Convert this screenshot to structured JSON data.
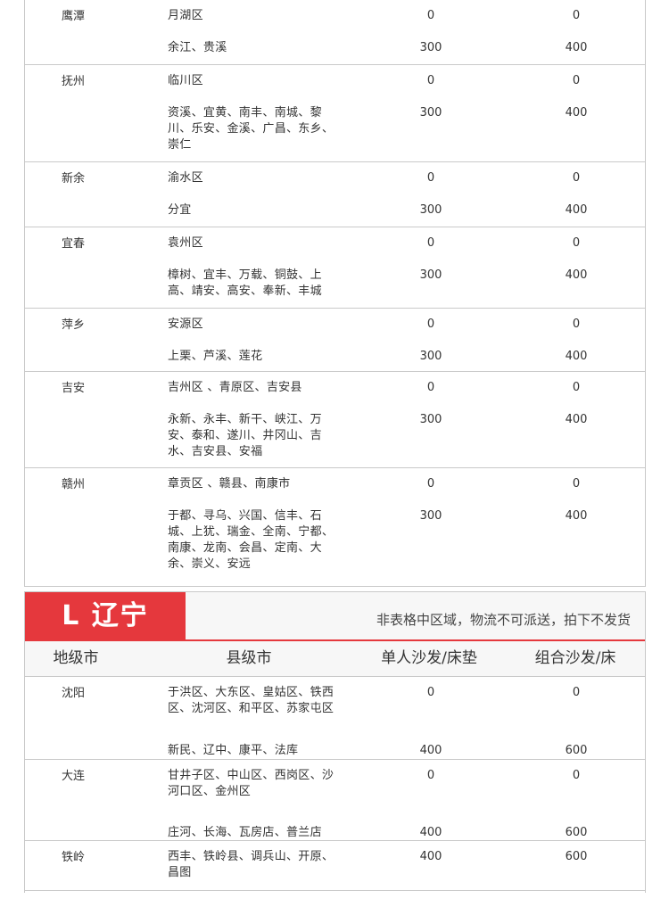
{
  "section1": {
    "groups": [
      {
        "city": "鹰潭",
        "rows": [
          {
            "county": "月湖区",
            "single": "0",
            "combo": "0"
          },
          {
            "county": "余江、贵溪",
            "single": "300",
            "combo": "400"
          }
        ]
      },
      {
        "city": "抚州",
        "rows": [
          {
            "county": "临川区",
            "single": "0",
            "combo": "0"
          },
          {
            "county": "资溪、宜黄、南丰、南城、黎川、乐安、金溪、广昌、东乡、崇仁",
            "single": "300",
            "combo": "400"
          }
        ]
      },
      {
        "city": "新余",
        "rows": [
          {
            "county": "渝水区",
            "single": "0",
            "combo": "0"
          },
          {
            "county": "分宜",
            "single": "300",
            "combo": "400"
          }
        ]
      },
      {
        "city": "宜春",
        "rows": [
          {
            "county": "袁州区",
            "single": "0",
            "combo": "0"
          },
          {
            "county": "樟树、宜丰、万载、铜鼓、上高、靖安、高安、奉新、丰城",
            "single": "300",
            "combo": "400"
          }
        ]
      },
      {
        "city": "萍乡",
        "rows": [
          {
            "county": "安源区",
            "single": "0",
            "combo": "0"
          },
          {
            "county": "上栗、芦溪、莲花",
            "single": "300",
            "combo": "400"
          }
        ]
      },
      {
        "city": "吉安",
        "rows": [
          {
            "county": "吉州区 、青原区、吉安县",
            "single": "0",
            "combo": "0"
          },
          {
            "county": "永新、永丰、新干、峡江、万安、泰和、遂川、井冈山、吉水、吉安县、安福",
            "single": "300",
            "combo": "400"
          }
        ]
      },
      {
        "city": "赣州",
        "rows": [
          {
            "county": "章贡区 、赣县、南康市",
            "single": "0",
            "combo": "0"
          },
          {
            "county": "于都、寻乌、兴国、信丰、石城、上犹、瑞金、全南、宁都、南康、龙南、会昌、定南、大余、崇义、安远",
            "single": "300",
            "combo": "400"
          }
        ]
      }
    ]
  },
  "section2": {
    "province": "L 辽宁",
    "note": "非表格中区域，物流不可派送，拍下不发货",
    "accent": "#e5383d",
    "headers": [
      "地级市",
      "县级市",
      "单人沙发/床垫",
      "组合沙发/床"
    ],
    "groups": [
      {
        "city": "沈阳",
        "rows": [
          {
            "county": "于洪区、大东区、皇姑区、铁西区、沈河区、和平区、苏家屯区",
            "single": "0",
            "combo": "0"
          },
          {
            "county": "新民、辽中、康平、法库",
            "single": "400",
            "combo": "600"
          }
        ]
      },
      {
        "city": "大连",
        "rows": [
          {
            "county": "甘井子区、中山区、西岗区、沙河口区、金州区",
            "single": "0",
            "combo": "0"
          },
          {
            "county": "庄河、长海、瓦房店、普兰店",
            "single": "400",
            "combo": "600"
          }
        ]
      },
      {
        "city": "铁岭",
        "rows": [
          {
            "county": "西丰、铁岭县、调兵山、开原、昌图",
            "single": "400",
            "combo": "600"
          }
        ]
      },
      {
        "city": "",
        "rows": []
      }
    ]
  }
}
